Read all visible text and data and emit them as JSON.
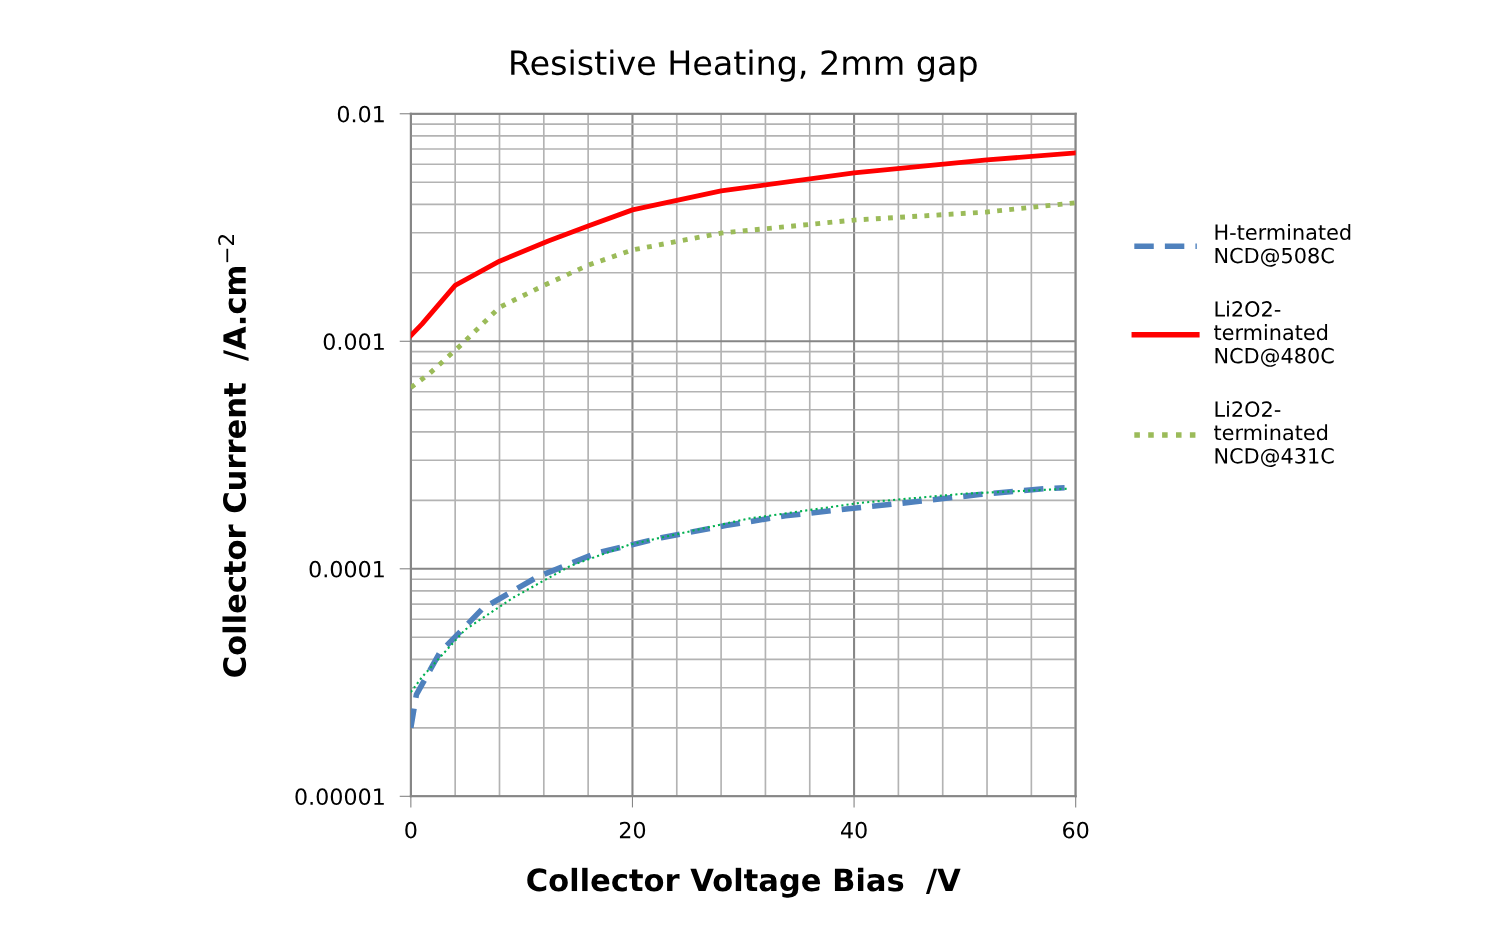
{
  "chart_data": {
    "type": "line",
    "title": "Resistive Heating, 2mm gap",
    "xlabel": "Collector Voltage Bias  /V",
    "ylabel": "Collector Current  /A.cm$^{−2}$",
    "log": "y",
    "xlim": [
      0,
      60
    ],
    "xticks": [
      0,
      20,
      40,
      60
    ],
    "ylim": [
      1e-05,
      0.01
    ],
    "yticks": [
      {
        "value": 1e-05,
        "label": "0.00001"
      },
      {
        "value": 0.0001,
        "label": "0.0001"
      },
      {
        "value": 0.001,
        "label": "0.001"
      },
      {
        "value": 0.01,
        "label": "0.01"
      }
    ],
    "grid": true,
    "legend": "right",
    "marker": "none",
    "series": [
      {
        "name": "H-terminated\nNCD@508C",
        "color": "#4f81bd",
        "line_style": "dashed",
        "x": [
          0,
          0.5,
          2.6,
          6.5,
          11.4,
          16.7,
          22.6,
          28.4,
          33.8,
          39.7,
          45.5,
          51.3,
          57.2,
          59
        ],
        "values": [
          2e-05,
          2.8e-05,
          4.27e-05,
          6.7e-05,
          9.2e-05,
          0.000117,
          0.000137,
          0.000155,
          0.000171,
          0.000184,
          0.000197,
          0.000212,
          0.000225,
          0.000227
        ]
      },
      {
        "name": "Li2O2-\nterminated\nNCD@480C",
        "color": "#ff0000",
        "line_style": "solid",
        "x": [
          0,
          1,
          4,
          8,
          12.4,
          16,
          20,
          28,
          40,
          52,
          60
        ],
        "values": [
          0.00106,
          0.00119,
          0.00176,
          0.00225,
          0.00276,
          0.00321,
          0.00378,
          0.00458,
          0.0055,
          0.00627,
          0.00673
        ]
      },
      {
        "name": "Li2O2-\nterminated\nNCD@431C",
        "color": "#9bbb59",
        "line_style": "dotted",
        "x": [
          0,
          1.6,
          4.6,
          8,
          12,
          16,
          20,
          28,
          40,
          52,
          60
        ],
        "values": [
          0.000626,
          0.000716,
          0.00097,
          0.00141,
          0.00176,
          0.00216,
          0.00252,
          0.00299,
          0.00341,
          0.0037,
          0.00406
        ]
      },
      {
        "color": "#00b050",
        "line_style": "dotted",
        "x": [
          0,
          1,
          4.9,
          9.3,
          14.4,
          19.8,
          30.4,
          40.6,
          50,
          59.4
        ],
        "values": [
          2.87e-05,
          3.34e-05,
          5.4e-05,
          7.5e-05,
          0.000103,
          0.000128,
          0.000166,
          0.000195,
          0.000214,
          0.000225
        ]
      }
    ]
  }
}
